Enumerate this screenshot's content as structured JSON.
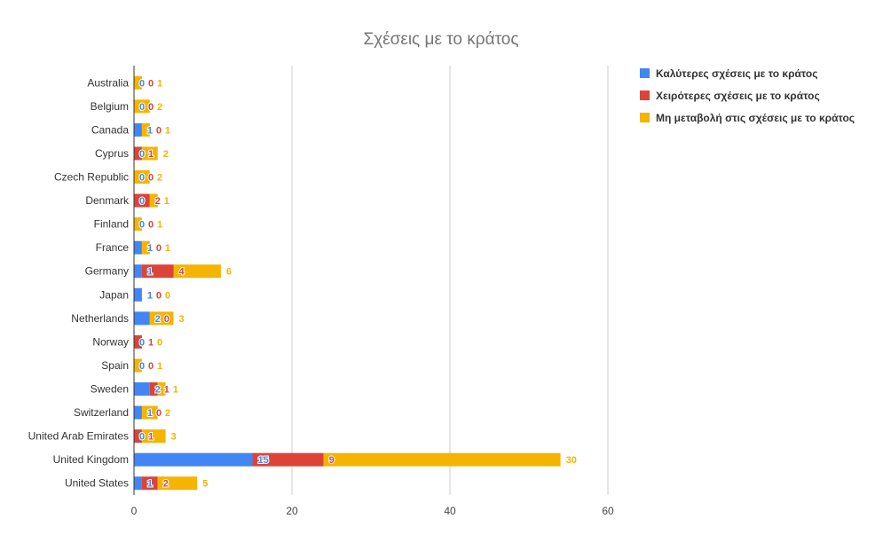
{
  "chart_data": {
    "type": "bar",
    "orientation": "horizontal",
    "stacked": true,
    "title": "Σχέσεις με το κράτος",
    "xlabel": "",
    "ylabel": "",
    "categories": [
      "Australia",
      "Belgium",
      "Canada",
      "Cyprus",
      "Czech Republic",
      "Denmark",
      "Finland",
      "France",
      "Germany",
      "Japan",
      "Netherlands",
      "Norway",
      "Spain",
      "Sweden",
      "Switzerland",
      "United Arab Emirates",
      "United Kingdom",
      "United States"
    ],
    "series": [
      {
        "name": "Καλύτερες σχέσεις με το κράτος",
        "color": "#4285F4",
        "values": [
          0,
          0,
          1,
          0,
          0,
          0,
          0,
          1,
          1,
          1,
          2,
          0,
          0,
          2,
          1,
          0,
          15,
          1
        ]
      },
      {
        "name": "Χειρότερες σχέσεις με το κράτος",
        "color": "#DB4437",
        "values": [
          0,
          0,
          0,
          1,
          0,
          2,
          0,
          0,
          4,
          0,
          0,
          1,
          0,
          1,
          0,
          1,
          9,
          2
        ]
      },
      {
        "name": "Μη μεταβολή στις σχέσεις με το κράτος",
        "color": "#F4B400",
        "values": [
          1,
          2,
          1,
          2,
          2,
          1,
          1,
          1,
          6,
          0,
          3,
          0,
          1,
          1,
          2,
          3,
          30,
          5
        ]
      }
    ],
    "xlim": [
      0,
      60
    ],
    "xticks": [
      0,
      20,
      40,
      60
    ],
    "grid": true,
    "legend": "right"
  }
}
